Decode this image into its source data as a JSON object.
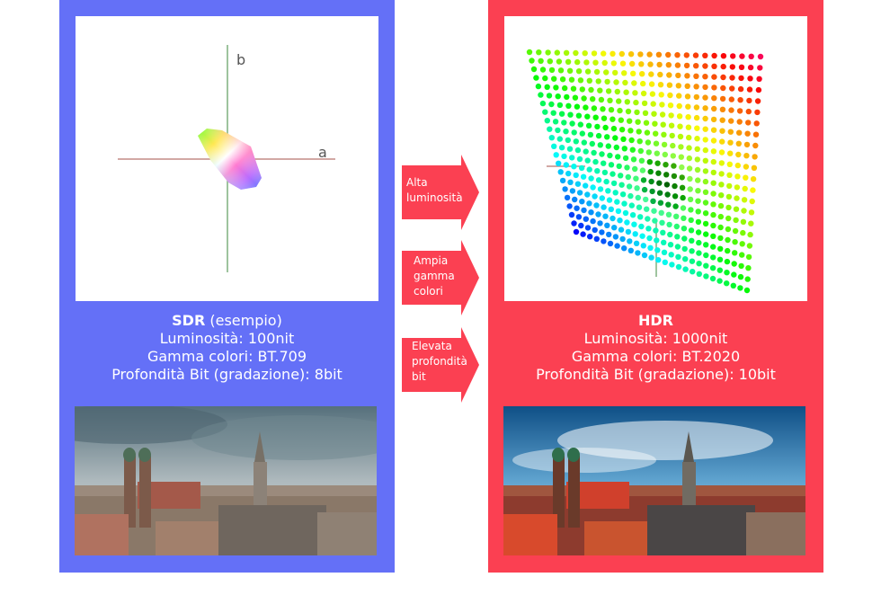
{
  "sdr": {
    "plot": {
      "axis_a": "a",
      "axis_b": "b"
    },
    "title": "SDR",
    "title_suffix": " (esempio)",
    "luminance": "Luminosità: 100nit",
    "gamut": "Gamma colori: BT.709",
    "bit_depth": "Profondità Bit (gradazione): 8bit"
  },
  "hdr": {
    "title": "HDR",
    "luminance": "Luminosità: 1000nit",
    "gamut": "Gamma colori: BT.2020",
    "bit_depth": "Profondità Bit (gradazione): 10bit"
  },
  "arrows": [
    {
      "lines": [
        "Alta",
        "luminosità"
      ]
    },
    {
      "lines": [
        "Ampia",
        "gamma",
        "colori"
      ]
    },
    {
      "lines": [
        "Elevata",
        "profondità",
        "bit"
      ]
    }
  ],
  "colors": {
    "sdr_panel": "#6470f7",
    "hdr_panel": "#fb4052",
    "arrow": "#fb4052",
    "axis_a": "#c48b86",
    "axis_b": "#7fb07f"
  }
}
